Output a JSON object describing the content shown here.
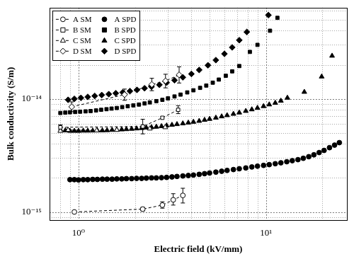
{
  "chart_data": {
    "type": "scatter",
    "x_label": "Electric field (kV/mm)",
    "y_label": "Bulk conductivity (S/m)",
    "log": true,
    "grid": true,
    "legend": "upper left",
    "xlim": [
      0.73,
      27
    ],
    "ylim": [
      8.5e-16,
      6.4e-14
    ],
    "xticks": [
      {
        "value": 1,
        "label": "10⁰"
      },
      {
        "value": 10,
        "label": "10¹"
      }
    ],
    "yticks": [
      {
        "value": 1e-15,
        "label": "10⁻¹⁵"
      },
      {
        "value": 1e-14,
        "label": "10⁻¹⁴"
      }
    ],
    "series": [
      {
        "name": "A SM",
        "color": "#000000",
        "marker": "circle-open",
        "line_style": "dashed",
        "x": [
          0.95,
          2.2,
          2.8,
          3.2,
          3.6
        ],
        "values": [
          1e-15,
          1.06e-15,
          1.15e-15,
          1.28e-15,
          1.4e-15
        ],
        "error_bars": [
          null,
          [
            1.02e-15,
            1.1e-15
          ],
          [
            1.08e-15,
            1.23e-15
          ],
          [
            1.15e-15,
            1.45e-15
          ],
          [
            1.2e-15,
            1.62e-15
          ]
        ]
      },
      {
        "name": "A SPD",
        "color": "#000000",
        "marker": "circle",
        "line_style": "none",
        "x": [
          0.9,
          0.95,
          1.0,
          1.06,
          1.12,
          1.19,
          1.26,
          1.34,
          1.42,
          1.51,
          1.6,
          1.7,
          1.8,
          1.92,
          2.04,
          2.17,
          2.3,
          2.45,
          2.6,
          2.77,
          2.95,
          3.15,
          3.35,
          3.6,
          3.85,
          4.1,
          4.4,
          4.7,
          5.0,
          5.4,
          5.8,
          6.2,
          6.7,
          7.2,
          7.8,
          8.4,
          9.0,
          9.7,
          10.4,
          11.2,
          12.0,
          12.9,
          13.8,
          14.8,
          15.8,
          16.9,
          18.0,
          19.2,
          20.4,
          21.8,
          23.2,
          24.6
        ],
        "values": [
          1.93e-15,
          1.93e-15,
          1.92e-15,
          1.93e-15,
          1.93e-15,
          1.94e-15,
          1.94e-15,
          1.95e-15,
          1.95e-15,
          1.95e-15,
          1.96e-15,
          1.96e-15,
          1.97e-15,
          1.97e-15,
          1.98e-15,
          1.98e-15,
          1.99e-15,
          2e-15,
          2e-15,
          2.01e-15,
          2.02e-15,
          2.04e-15,
          2.06e-15,
          2.08e-15,
          2.1e-15,
          2.12e-15,
          2.15e-15,
          2.18e-15,
          2.21e-15,
          2.25e-15,
          2.29e-15,
          2.33e-15,
          2.37e-15,
          2.41e-15,
          2.45e-15,
          2.5e-15,
          2.54e-15,
          2.58e-15,
          2.62e-15,
          2.67e-15,
          2.72e-15,
          2.78e-15,
          2.84e-15,
          2.9e-15,
          2.98e-15,
          3.08e-15,
          3.2e-15,
          3.35e-15,
          3.5e-15,
          3.7e-15,
          3.9e-15,
          4.1e-15
        ]
      },
      {
        "name": "B SM",
        "color": "#000000",
        "marker": "square-open",
        "line_style": "dashed",
        "x": [
          0.8,
          2.2,
          2.8,
          3.4
        ],
        "values": [
          5.6e-15,
          5.7e-15,
          6.8e-15,
          8e-15
        ],
        "error_bars": [
          [
            5.3e-15,
            5.9e-15
          ],
          [
            4.9e-15,
            6.6e-15
          ],
          null,
          [
            7.4e-15,
            8.7e-15
          ]
        ]
      },
      {
        "name": "B SPD",
        "color": "#000000",
        "marker": "square",
        "line_style": "none",
        "x": [
          0.8,
          0.85,
          0.9,
          0.96,
          1.02,
          1.09,
          1.16,
          1.24,
          1.32,
          1.41,
          1.5,
          1.6,
          1.71,
          1.83,
          1.96,
          2.1,
          2.25,
          2.4,
          2.6,
          2.8,
          3.0,
          3.25,
          3.5,
          3.8,
          4.1,
          4.45,
          4.8,
          5.2,
          5.6,
          6.1,
          6.6,
          7.2,
          8.2,
          9.0,
          10.5,
          11.5
        ],
        "values": [
          7.5e-15,
          7.55e-15,
          7.6e-15,
          7.65e-15,
          7.7e-15,
          7.75e-15,
          7.8e-15,
          7.9e-15,
          8e-15,
          8.1e-15,
          8.2e-15,
          8.3e-15,
          8.45e-15,
          8.6e-15,
          8.75e-15,
          8.9e-15,
          9.1e-15,
          9.3e-15,
          9.55e-15,
          9.8e-15,
          1.01e-14,
          1.05e-14,
          1.09e-14,
          1.14e-14,
          1.19e-14,
          1.25e-14,
          1.31e-14,
          1.39e-14,
          1.48e-14,
          1.6e-14,
          1.75e-14,
          1.95e-14,
          2.6e-14,
          3e-14,
          4e-14,
          5.2e-14
        ]
      },
      {
        "name": "C SM",
        "color": "#000000",
        "marker": "triangle-open",
        "line_style": "dashed",
        "x": [
          0.8,
          0.88,
          1.25,
          1.6,
          2.4,
          2.9
        ],
        "values": [
          5.2e-15,
          5.3e-15,
          5.25e-15,
          5.3e-15,
          5.45e-15,
          5.6e-15
        ]
      },
      {
        "name": "C SPD",
        "color": "#000000",
        "marker": "triangle",
        "line_style": "none",
        "x": [
          0.85,
          0.9,
          0.95,
          1.0,
          1.06,
          1.12,
          1.19,
          1.26,
          1.34,
          1.42,
          1.51,
          1.6,
          1.7,
          1.8,
          1.92,
          2.04,
          2.17,
          2.3,
          2.45,
          2.6,
          2.77,
          2.95,
          3.15,
          3.35,
          3.6,
          3.85,
          4.1,
          4.4,
          4.7,
          5.0,
          5.4,
          5.8,
          6.2,
          6.7,
          7.2,
          7.8,
          8.4,
          9.0,
          9.7,
          10.4,
          11.2,
          12.0,
          13.0,
          16.0,
          19.8,
          22.5
        ],
        "values": [
          5.25e-15,
          5.2e-15,
          5.2e-15,
          5.2e-15,
          5.22e-15,
          5.22e-15,
          5.23e-15,
          5.25e-15,
          5.25e-15,
          5.27e-15,
          5.3e-15,
          5.32e-15,
          5.35e-15,
          5.38e-15,
          5.42e-15,
          5.46e-15,
          5.5e-15,
          5.55e-15,
          5.6e-15,
          5.66e-15,
          5.72e-15,
          5.8e-15,
          5.88e-15,
          5.96e-15,
          6.05e-15,
          6.15e-15,
          6.25e-15,
          6.37e-15,
          6.5e-15,
          6.63e-15,
          6.8e-15,
          6.98e-15,
          7.15e-15,
          7.35e-15,
          7.55e-15,
          7.8e-15,
          8.05e-15,
          8.3e-15,
          8.6e-15,
          8.9e-15,
          9.2e-15,
          9.6e-15,
          1.02e-14,
          1.15e-14,
          1.57e-14,
          2.4e-14
        ]
      },
      {
        "name": "D SM",
        "color": "#000000",
        "marker": "diamond-open",
        "line_style": "dashed",
        "x": [
          0.92,
          1.76,
          2.46,
          2.91,
          3.44
        ],
        "values": [
          8.5e-15,
          1.09e-14,
          1.34e-14,
          1.44e-14,
          1.63e-14
        ],
        "error_bars": [
          [
            7.7e-15,
            9.4e-15
          ],
          [
            9.7e-15,
            1.22e-14
          ],
          [
            1.18e-14,
            1.52e-14
          ],
          [
            1.25e-14,
            1.65e-14
          ],
          [
            1.38e-14,
            1.92e-14
          ]
        ]
      },
      {
        "name": "D SPD",
        "color": "#000000",
        "marker": "diamond",
        "line_style": "none",
        "x": [
          0.88,
          0.95,
          1.03,
          1.12,
          1.22,
          1.33,
          1.45,
          1.58,
          1.72,
          1.88,
          2.05,
          2.25,
          2.45,
          2.7,
          2.95,
          3.25,
          3.6,
          4.0,
          4.4,
          4.9,
          5.4,
          6.0,
          6.6,
          7.2,
          7.9,
          10.3
        ],
        "values": [
          9.8e-15,
          1e-14,
          1.02e-14,
          1.04e-14,
          1.06e-14,
          1.08e-14,
          1.1e-14,
          1.12e-14,
          1.14e-14,
          1.17e-14,
          1.2e-14,
          1.24e-14,
          1.28e-14,
          1.33e-14,
          1.39e-14,
          1.46e-14,
          1.55e-14,
          1.66e-14,
          1.8e-14,
          1.98e-14,
          2.2e-14,
          2.5e-14,
          2.85e-14,
          3.3e-14,
          3.9e-14,
          5.5e-14
        ]
      }
    ]
  }
}
